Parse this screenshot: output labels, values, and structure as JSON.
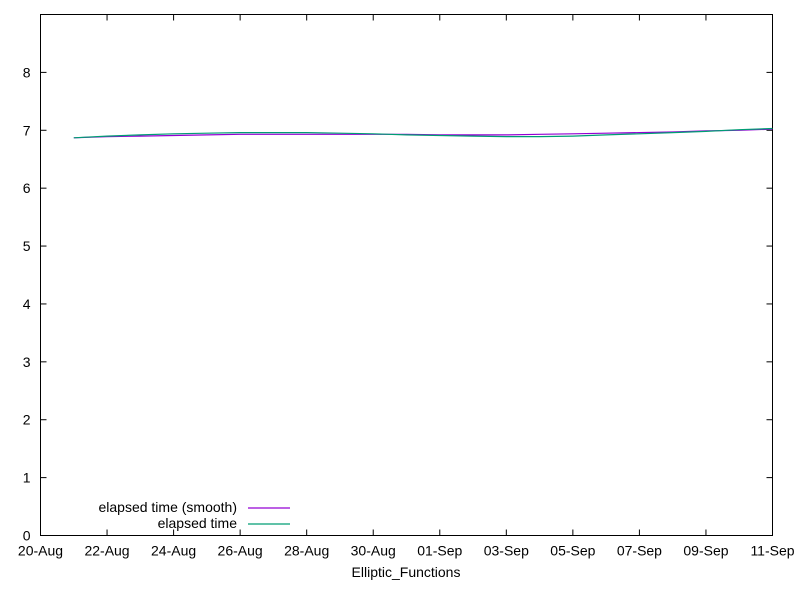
{
  "chart_data": {
    "type": "line",
    "title": "",
    "xlabel": "Elliptic_Functions",
    "ylabel": "",
    "x_type": "date",
    "xlim": [
      "2023-08-20",
      "2023-09-11"
    ],
    "ylim": [
      0,
      9
    ],
    "x_ticks": [
      {
        "date": "2023-08-20",
        "label": "20-Aug"
      },
      {
        "date": "2023-08-22",
        "label": "22-Aug"
      },
      {
        "date": "2023-08-24",
        "label": "24-Aug"
      },
      {
        "date": "2023-08-26",
        "label": "26-Aug"
      },
      {
        "date": "2023-08-28",
        "label": "28-Aug"
      },
      {
        "date": "2023-08-30",
        "label": "30-Aug"
      },
      {
        "date": "2023-09-01",
        "label": "01-Sep"
      },
      {
        "date": "2023-09-03",
        "label": "03-Sep"
      },
      {
        "date": "2023-09-05",
        "label": "05-Sep"
      },
      {
        "date": "2023-09-07",
        "label": "07-Sep"
      },
      {
        "date": "2023-09-09",
        "label": "09-Sep"
      },
      {
        "date": "2023-09-11",
        "label": "11-Sep"
      }
    ],
    "y_ticks": [
      0,
      1,
      2,
      3,
      4,
      5,
      6,
      7,
      8
    ],
    "grid": false,
    "legend_position": "bottom-left",
    "series": [
      {
        "name": "elapsed time (smooth)",
        "color": "#9400d3",
        "x": [
          "2023-08-21",
          "2023-08-22",
          "2023-08-23",
          "2023-08-24",
          "2023-08-25",
          "2023-08-26",
          "2023-08-27",
          "2023-08-28",
          "2023-08-29",
          "2023-08-30",
          "2023-08-31",
          "2023-09-01",
          "2023-09-02",
          "2023-09-03",
          "2023-09-04",
          "2023-09-05",
          "2023-09-06",
          "2023-09-07",
          "2023-09-08",
          "2023-09-09",
          "2023-09-10",
          "2023-09-11"
        ],
        "y": [
          6.87,
          6.89,
          6.9,
          6.91,
          6.92,
          6.93,
          6.93,
          6.93,
          6.93,
          6.93,
          6.93,
          6.92,
          6.92,
          6.92,
          6.93,
          6.94,
          6.95,
          6.96,
          6.97,
          6.99,
          7.0,
          7.02
        ]
      },
      {
        "name": "elapsed time",
        "color": "#009e73",
        "x": [
          "2023-08-21",
          "2023-08-22",
          "2023-08-23",
          "2023-08-24",
          "2023-08-25",
          "2023-08-26",
          "2023-08-27",
          "2023-08-28",
          "2023-08-29",
          "2023-08-30",
          "2023-08-31",
          "2023-09-01",
          "2023-09-02",
          "2023-09-03",
          "2023-09-04",
          "2023-09-05",
          "2023-09-06",
          "2023-09-07",
          "2023-09-08",
          "2023-09-09",
          "2023-09-10",
          "2023-09-11"
        ],
        "y": [
          6.87,
          6.9,
          6.92,
          6.94,
          6.95,
          6.96,
          6.96,
          6.96,
          6.95,
          6.94,
          6.92,
          6.91,
          6.9,
          6.89,
          6.89,
          6.9,
          6.92,
          6.94,
          6.96,
          6.98,
          7.01,
          7.03
        ]
      }
    ]
  }
}
